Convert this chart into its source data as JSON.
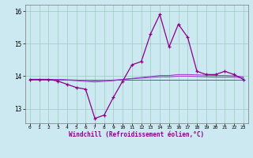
{
  "x": [
    0,
    1,
    2,
    3,
    4,
    5,
    6,
    7,
    8,
    9,
    10,
    11,
    12,
    13,
    14,
    15,
    16,
    17,
    18,
    19,
    20,
    21,
    22,
    23
  ],
  "windchill": [
    13.9,
    13.9,
    13.9,
    13.85,
    13.75,
    13.65,
    13.6,
    12.7,
    12.8,
    13.35,
    13.85,
    14.35,
    14.45,
    15.3,
    15.9,
    14.9,
    15.6,
    15.2,
    14.15,
    14.05,
    14.05,
    14.15,
    14.05,
    13.9
  ],
  "line2": [
    13.9,
    13.9,
    13.9,
    13.9,
    13.88,
    13.86,
    13.84,
    13.82,
    13.84,
    13.86,
    13.9,
    13.93,
    13.96,
    13.99,
    14.02,
    14.02,
    14.05,
    14.05,
    14.04,
    14.03,
    14.02,
    14.02,
    14.01,
    13.98
  ],
  "line3": [
    13.9,
    13.9,
    13.9,
    13.9,
    13.89,
    13.88,
    13.87,
    13.86,
    13.87,
    13.88,
    13.9,
    13.92,
    13.94,
    13.96,
    13.98,
    13.98,
    14.0,
    14.0,
    13.99,
    13.98,
    13.97,
    13.97,
    13.97,
    13.95
  ],
  "line4": [
    13.9,
    13.9,
    13.9,
    13.9,
    13.9,
    13.9,
    13.9,
    13.9,
    13.9,
    13.9,
    13.9,
    13.9,
    13.9,
    13.9,
    13.9,
    13.9,
    13.9,
    13.9,
    13.9,
    13.9,
    13.9,
    13.9,
    13.9,
    13.9
  ],
  "color_main": "#8b008b",
  "color_lines": "#9932cc",
  "bg_color": "#cce8f0",
  "grid_color": "#99ccbb",
  "xlabel": "Windchill (Refroidissement éolien,°C)",
  "ylim": [
    12.55,
    16.2
  ],
  "xlim": [
    -0.5,
    23.5
  ],
  "yticks": [
    13,
    14,
    15,
    16
  ],
  "xticks": [
    0,
    1,
    2,
    3,
    4,
    5,
    6,
    7,
    8,
    9,
    10,
    11,
    12,
    13,
    14,
    15,
    16,
    17,
    18,
    19,
    20,
    21,
    22,
    23
  ]
}
